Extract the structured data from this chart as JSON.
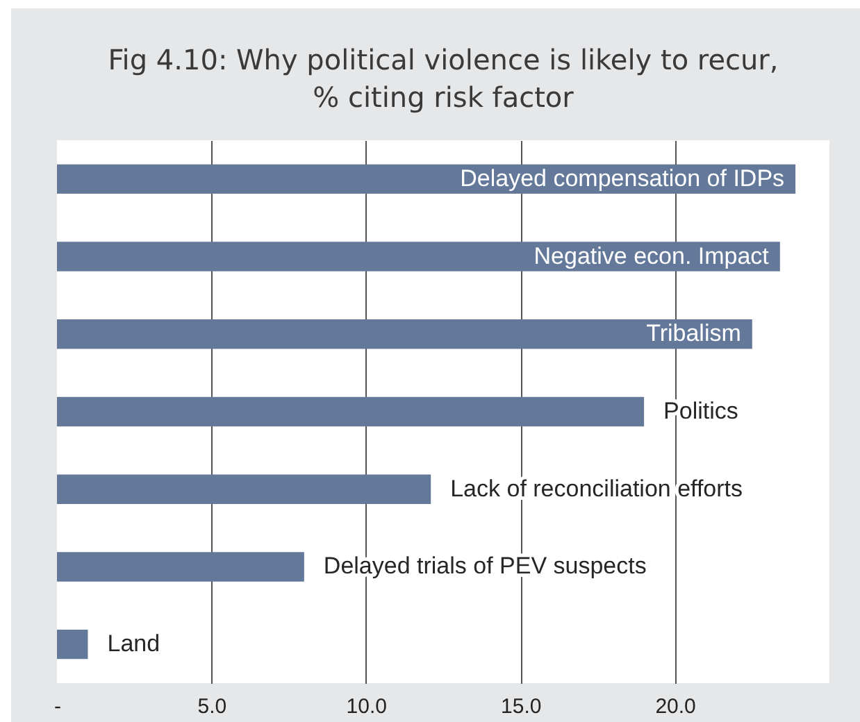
{
  "chart_data": {
    "type": "bar",
    "orientation": "horizontal",
    "title": "Fig 4.10: Why political violence is likely to recur, % citing risk factor",
    "categories": [
      "Delayed compensation of IDPs",
      "Negative econ. Impact",
      "Tribalism",
      "Politics",
      "Lack of reconciliation efforts",
      "Delayed trials of PEV suspects",
      "Land"
    ],
    "values": [
      23.9,
      23.4,
      22.5,
      19.0,
      12.1,
      8.0,
      1.0
    ],
    "color": "#64799a",
    "xlim": [
      0,
      25
    ],
    "xticks": [
      {
        "value": 0,
        "label": "-"
      },
      {
        "value": 5,
        "label": "5.0"
      },
      {
        "value": 10,
        "label": "10.0"
      },
      {
        "value": 15,
        "label": "15.0"
      },
      {
        "value": 20,
        "label": "20.0"
      }
    ],
    "grid": "x"
  }
}
